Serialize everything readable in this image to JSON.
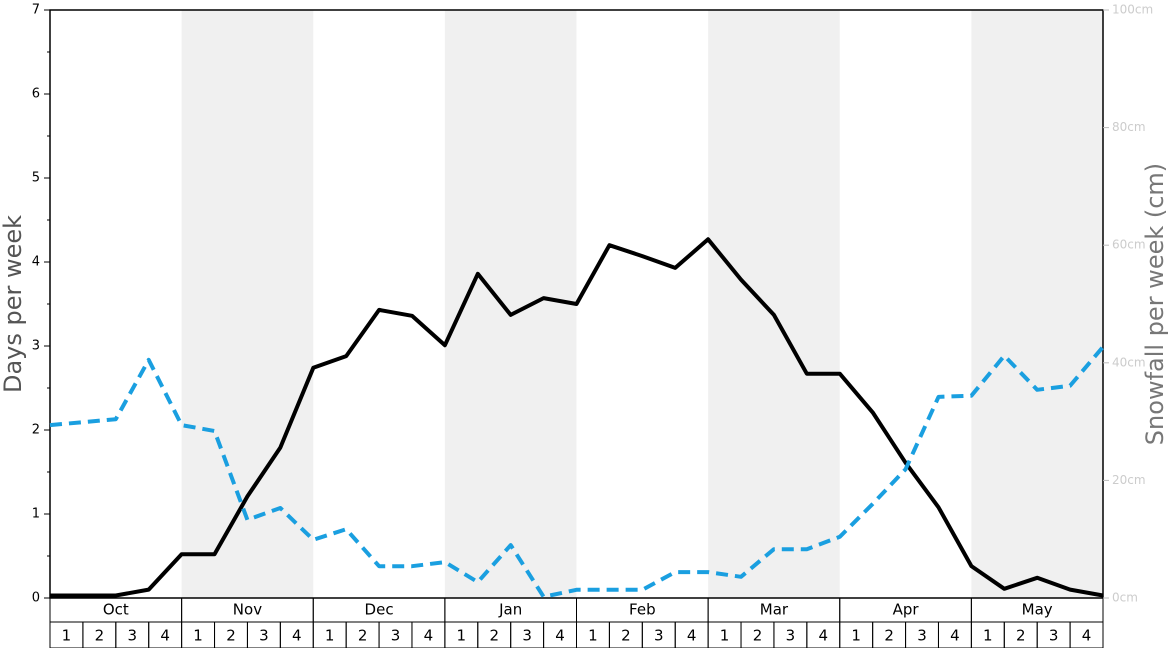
{
  "chart_data": {
    "type": "line",
    "y_label": "Days per week",
    "y2_label": "Snowfall per week (cm)",
    "months": [
      "Oct",
      "Nov",
      "Dec",
      "Jan",
      "Feb",
      "Mar",
      "Apr",
      "May"
    ],
    "weeks": [
      "1",
      "2",
      "3",
      "4"
    ],
    "ylim": [
      0,
      7
    ],
    "yticks": [
      0,
      1,
      2,
      3,
      4,
      5,
      6,
      7
    ],
    "y2lim": [
      0,
      100
    ],
    "y2ticks": [
      {
        "value": 0,
        "label": "0cm"
      },
      {
        "value": 20,
        "label": "20cm"
      },
      {
        "value": 40,
        "label": "40cm"
      },
      {
        "value": 60,
        "label": "60cm"
      },
      {
        "value": 80,
        "label": "80cm"
      },
      {
        "value": 100,
        "label": "100cm"
      }
    ],
    "series": [
      {
        "color": "#000000",
        "dashed": false,
        "values": [
          0.03,
          0.03,
          0.03,
          0.1,
          0.52,
          0.52,
          1.21,
          1.79,
          2.74,
          2.88,
          3.43,
          3.36,
          3.01,
          3.86,
          3.37,
          3.57,
          3.5,
          4.2,
          4.07,
          3.93,
          4.27,
          3.79,
          3.37,
          2.67,
          2.67,
          2.21,
          1.61,
          1.08,
          0.38,
          0.11,
          0.24,
          0.1,
          0.03
        ]
      },
      {
        "color": "#1a9fe0",
        "dashed": true,
        "axis": "y2",
        "values": [
          29.4,
          29.9,
          30.4,
          40.5,
          29.4,
          28.4,
          13.3,
          15.3,
          9.9,
          11.7,
          5.4,
          5.4,
          6.1,
          2.7,
          9.0,
          0.2,
          1.4,
          1.4,
          1.4,
          4.4,
          4.4,
          3.6,
          8.3,
          8.3,
          10.4,
          16.0,
          21.9,
          34.2,
          34.4,
          41.2,
          35.4,
          36.1,
          42.7
        ]
      }
    ]
  }
}
